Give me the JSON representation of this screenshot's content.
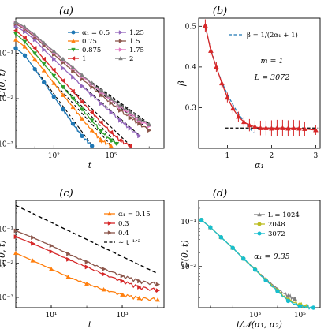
{
  "figure": {
    "panel_labels": [
      "(a)",
      "(b)",
      "(c)",
      "(d)"
    ]
  },
  "chart_data": [
    {
      "panel": "(a)",
      "type": "line",
      "xlabel": "t",
      "ylabel": "C(0, t)",
      "xscale": "log",
      "yscale": "log",
      "xlim": [
        1,
        60000000
      ],
      "ylim": [
        0.0008,
        0.6
      ],
      "xticks": [
        {
          "v": 100,
          "label": "10²"
        },
        {
          "v": 100000,
          "label": "10⁵"
        }
      ],
      "yticks": [
        {
          "v": 0.001,
          "label": "10⁻³"
        },
        {
          "v": 0.01,
          "label": "10⁻²"
        },
        {
          "v": 0.1,
          "label": "10⁻¹"
        }
      ],
      "legend": {
        "placement": "top-right",
        "columns": 2
      },
      "series": [
        {
          "name": "α₁ = 0.5",
          "color": "#1f77b4",
          "marker": "circle",
          "points": [
            [
              1,
              0.13
            ],
            [
              3,
              0.09
            ],
            [
              10,
              0.045
            ],
            [
              30,
              0.023
            ],
            [
              100,
              0.011
            ],
            [
              300,
              0.0058
            ],
            [
              1000,
              0.0028
            ],
            [
              3000,
              0.0015
            ],
            [
              10000,
              0.0009
            ]
          ]
        },
        {
          "name": "0.75",
          "color": "#ff7f0e",
          "marker": "triangle-up",
          "points": [
            [
              1,
              0.2
            ],
            [
              3,
              0.14
            ],
            [
              10,
              0.075
            ],
            [
              30,
              0.042
            ],
            [
              100,
              0.022
            ],
            [
              300,
              0.012
            ],
            [
              1000,
              0.0065
            ],
            [
              3000,
              0.0036
            ],
            [
              10000,
              0.002
            ],
            [
              30000,
              0.0012
            ],
            [
              100000,
              0.0009
            ]
          ]
        },
        {
          "name": "0.875",
          "color": "#2ca02c",
          "marker": "triangle-down",
          "points": [
            [
              1,
              0.27
            ],
            [
              3,
              0.18
            ],
            [
              10,
              0.1
            ],
            [
              30,
              0.058
            ],
            [
              100,
              0.032
            ],
            [
              300,
              0.018
            ],
            [
              1000,
              0.01
            ],
            [
              3000,
              0.0058
            ],
            [
              10000,
              0.0033
            ],
            [
              30000,
              0.0019
            ],
            [
              100000,
              0.0012
            ],
            [
              200000,
              0.001
            ]
          ]
        },
        {
          "name": "1",
          "color": "#d62728",
          "marker": "triangle-left",
          "points": [
            [
              1,
              0.32
            ],
            [
              3,
              0.22
            ],
            [
              10,
              0.13
            ],
            [
              30,
              0.075
            ],
            [
              100,
              0.043
            ],
            [
              300,
              0.025
            ],
            [
              1000,
              0.0145
            ],
            [
              3000,
              0.0085
            ],
            [
              10000,
              0.005
            ],
            [
              30000,
              0.003
            ],
            [
              100000,
              0.0018
            ],
            [
              300000,
              0.0012
            ],
            [
              1000000,
              0.0009
            ]
          ]
        },
        {
          "name": "1.25",
          "color": "#9467bd",
          "marker": "triangle-right",
          "points": [
            [
              1,
              0.4
            ],
            [
              3,
              0.3
            ],
            [
              10,
              0.2
            ],
            [
              30,
              0.12
            ],
            [
              100,
              0.075
            ],
            [
              300,
              0.047
            ],
            [
              1000,
              0.03
            ],
            [
              3000,
              0.019
            ],
            [
              10000,
              0.012
            ],
            [
              30000,
              0.0078
            ],
            [
              100000,
              0.005
            ],
            [
              300000,
              0.0033
            ],
            [
              1000000,
              0.0022
            ],
            [
              3000000,
              0.0015
            ]
          ]
        },
        {
          "name": "1.5",
          "color": "#8c564b",
          "marker": "triangle-right",
          "points": [
            [
              1,
              0.45
            ],
            [
              3,
              0.34
            ],
            [
              10,
              0.23
            ],
            [
              30,
              0.15
            ],
            [
              100,
              0.095
            ],
            [
              300,
              0.063
            ],
            [
              1000,
              0.041
            ],
            [
              3000,
              0.027
            ],
            [
              10000,
              0.018
            ],
            [
              30000,
              0.012
            ],
            [
              100000,
              0.008
            ],
            [
              300000,
              0.0055
            ],
            [
              1000000,
              0.0038
            ],
            [
              3000000,
              0.0028
            ],
            [
              10000000,
              0.002
            ]
          ]
        },
        {
          "name": "1.75",
          "color": "#e377c2",
          "marker": "triangle-right",
          "points": [
            [
              1,
              0.48
            ],
            [
              3,
              0.36
            ],
            [
              10,
              0.25
            ],
            [
              30,
              0.165
            ],
            [
              100,
              0.107
            ],
            [
              300,
              0.072
            ],
            [
              1000,
              0.047
            ],
            [
              3000,
              0.031
            ],
            [
              10000,
              0.021
            ],
            [
              30000,
              0.014
            ],
            [
              100000,
              0.0095
            ],
            [
              300000,
              0.0065
            ],
            [
              1000000,
              0.0046
            ],
            [
              3000000,
              0.0033
            ],
            [
              10000000,
              0.0025
            ]
          ]
        },
        {
          "name": "2",
          "color": "#7f7f7f",
          "marker": "triangle-up",
          "points": [
            [
              1,
              0.5
            ],
            [
              3,
              0.38
            ],
            [
              10,
              0.26
            ],
            [
              30,
              0.17
            ],
            [
              100,
              0.112
            ],
            [
              300,
              0.075
            ],
            [
              1000,
              0.049
            ],
            [
              3000,
              0.033
            ],
            [
              10000,
              0.022
            ],
            [
              30000,
              0.015
            ],
            [
              100000,
              0.01
            ],
            [
              300000,
              0.007
            ],
            [
              1000000,
              0.005
            ],
            [
              3000000,
              0.0036
            ],
            [
              10000000,
              0.0027
            ]
          ]
        }
      ]
    },
    {
      "panel": "(b)",
      "type": "line",
      "xlabel": "α₁",
      "ylabel": "β",
      "xscale": "linear",
      "yscale": "linear",
      "xlim": [
        0.35,
        3.1
      ],
      "ylim": [
        0.2,
        0.52
      ],
      "xticks": [
        {
          "v": 1,
          "label": "1"
        },
        {
          "v": 2,
          "label": "2"
        },
        {
          "v": 3,
          "label": "3"
        }
      ],
      "yticks": [
        {
          "v": 0.3,
          "label": "0.3"
        },
        {
          "v": 0.4,
          "label": "0.4"
        },
        {
          "v": 0.5,
          "label": "0.5"
        }
      ],
      "legend": {
        "placement": "top-right",
        "entries": [
          "β = 1/(2α₁ + 1)"
        ]
      },
      "annotations": [
        "m = 1",
        "L = 3072"
      ],
      "series": [
        {
          "name": "data",
          "color": "#d62728",
          "marker": "triangle-up",
          "x": [
            0.5,
            0.625,
            0.75,
            0.875,
            1.0,
            1.125,
            1.25,
            1.375,
            1.5,
            1.625,
            1.75,
            1.875,
            2.0,
            2.125,
            2.25,
            2.375,
            2.5,
            2.625,
            2.75,
            3.0
          ],
          "y": [
            0.502,
            0.44,
            0.4,
            0.36,
            0.325,
            0.298,
            0.278,
            0.265,
            0.257,
            0.253,
            0.25,
            0.25,
            0.249,
            0.25,
            0.25,
            0.249,
            0.25,
            0.249,
            0.248,
            0.245
          ],
          "err": [
            0.015,
            0.012,
            0.012,
            0.012,
            0.012,
            0.012,
            0.012,
            0.012,
            0.015,
            0.015,
            0.018,
            0.018,
            0.02,
            0.02,
            0.02,
            0.02,
            0.02,
            0.02,
            0.018,
            0.012
          ]
        },
        {
          "name": "β = 1/(2α₁ + 1)",
          "color": "#1f77b4",
          "style": "dashed",
          "formula": "1/(2x+1)",
          "xrange": [
            0.5,
            1.6
          ]
        },
        {
          "name": "β = 0.25",
          "color": "#000000",
          "style": "dashed",
          "y": 0.25,
          "xrange": [
            0.95,
            3.05
          ]
        }
      ]
    },
    {
      "panel": "(c)",
      "type": "line",
      "xlabel": "t",
      "ylabel": "C(0, t)",
      "xscale": "log",
      "yscale": "log",
      "xlim": [
        1,
        15000
      ],
      "ylim": [
        0.0005,
        0.7
      ],
      "xticks": [
        {
          "v": 10,
          "label": "10¹"
        },
        {
          "v": 1000,
          "label": "10³"
        }
      ],
      "yticks": [
        {
          "v": 0.001,
          "label": "10⁻³"
        },
        {
          "v": 0.01,
          "label": "10⁻²"
        },
        {
          "v": 0.1,
          "label": "10⁻¹"
        }
      ],
      "legend": {
        "placement": "top-right"
      },
      "series": [
        {
          "name": "α₁ = 0.15",
          "color": "#ff7f0e",
          "marker": "triangle-up",
          "points": [
            [
              1,
              0.02
            ],
            [
              3,
              0.012
            ],
            [
              10,
              0.0068
            ],
            [
              30,
              0.004
            ],
            [
              100,
              0.0025
            ],
            [
              300,
              0.0017
            ],
            [
              1000,
              0.0012
            ],
            [
              3000,
              0.00095
            ],
            [
              10000,
              0.00085
            ]
          ]
        },
        {
          "name": "0.3",
          "color": "#d62728",
          "marker": "triangle-right",
          "points": [
            [
              1,
              0.06
            ],
            [
              3,
              0.038
            ],
            [
              10,
              0.022
            ],
            [
              30,
              0.013
            ],
            [
              100,
              0.0078
            ],
            [
              300,
              0.0048
            ],
            [
              1000,
              0.003
            ],
            [
              3000,
              0.002
            ],
            [
              10000,
              0.0016
            ]
          ]
        },
        {
          "name": "0.4",
          "color": "#8c564b",
          "marker": "triangle-right",
          "points": [
            [
              1,
              0.09
            ],
            [
              3,
              0.057
            ],
            [
              10,
              0.033
            ],
            [
              30,
              0.019
            ],
            [
              100,
              0.011
            ],
            [
              300,
              0.0068
            ],
            [
              1000,
              0.0043
            ],
            [
              3000,
              0.003
            ],
            [
              10000,
              0.0024
            ]
          ]
        },
        {
          "name": "∼ t⁻¹ᐟ²",
          "color": "#000000",
          "style": "dashed",
          "points": [
            [
              1,
              0.5
            ],
            [
              10000,
              0.005
            ]
          ]
        }
      ]
    },
    {
      "panel": "(d)",
      "type": "line",
      "xlabel": "t/𝒩(α₁, α₂)",
      "ylabel": "C(0, t)",
      "xscale": "log",
      "yscale": "log",
      "xlim": [
        3,
        800000
      ],
      "ylim": [
        0.0012,
        0.3
      ],
      "xticks": [
        {
          "v": 1000,
          "label": "10³"
        },
        {
          "v": 100000,
          "label": "10⁵"
        }
      ],
      "yticks": [
        {
          "v": 0.01,
          "label": "10⁻²"
        },
        {
          "v": 0.1,
          "label": "10⁻¹"
        }
      ],
      "legend": {
        "placement": "top-right"
      },
      "annotations": [
        "α₁ = 0.35"
      ],
      "series": [
        {
          "name": "L = 1024",
          "color": "#7f7f7f",
          "marker": "triangle-up",
          "points": [
            [
              4,
              0.11
            ],
            [
              10,
              0.075
            ],
            [
              30,
              0.045
            ],
            [
              100,
              0.026
            ],
            [
              300,
              0.015
            ],
            [
              1000,
              0.0087
            ],
            [
              3000,
              0.0052
            ],
            [
              10000,
              0.0031
            ],
            [
              30000,
              0.0022
            ],
            [
              60000,
              0.0019
            ]
          ]
        },
        {
          "name": "2048",
          "color": "#bcbd22",
          "marker": "circle",
          "points": [
            [
              4,
              0.11
            ],
            [
              10,
              0.075
            ],
            [
              30,
              0.045
            ],
            [
              100,
              0.026
            ],
            [
              300,
              0.015
            ],
            [
              1000,
              0.0086
            ],
            [
              3000,
              0.005
            ],
            [
              10000,
              0.0029
            ],
            [
              30000,
              0.0018
            ],
            [
              100000,
              0.0014
            ],
            [
              200000,
              0.0013
            ]
          ]
        },
        {
          "name": "3072",
          "color": "#17becf",
          "marker": "circle",
          "points": [
            [
              4,
              0.11
            ],
            [
              10,
              0.075
            ],
            [
              30,
              0.045
            ],
            [
              100,
              0.026
            ],
            [
              300,
              0.015
            ],
            [
              1000,
              0.0085
            ],
            [
              3000,
              0.0049
            ],
            [
              10000,
              0.0028
            ],
            [
              30000,
              0.0017
            ],
            [
              100000,
              0.0013
            ],
            [
              400000,
              0.0012
            ]
          ]
        }
      ]
    }
  ]
}
